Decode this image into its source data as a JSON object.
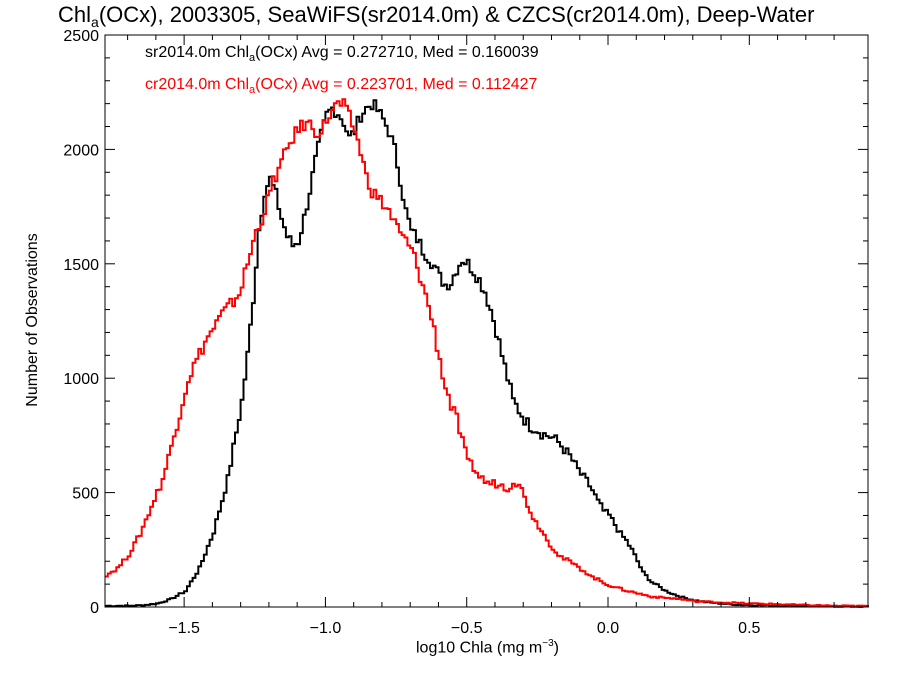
{
  "chart_data": {
    "type": "line",
    "title": {
      "pre": "Chl",
      "sub": "a",
      "post": "(OCx), 2003305, SeaWiFS(sr2014.0m) & CZCS(cr2014.0m), Deep-Water"
    },
    "xlabel": {
      "pre": "log10 Chla (mg m",
      "sup": "−3",
      "post": ")"
    },
    "ylabel": "Number of Observations",
    "xlim": [
      -1.78,
      0.92
    ],
    "ylim": [
      0,
      2500
    ],
    "xticks": [
      -1.5,
      -1.0,
      -0.5,
      0.0,
      0.5
    ],
    "xtick_labels": [
      "−1.5",
      "−1.0",
      "−0.5",
      "0.0",
      "0.5"
    ],
    "yticks": [
      0,
      500,
      1000,
      1500,
      2000,
      2500
    ],
    "ytick_labels": [
      "0",
      "500",
      "1000",
      "1500",
      "2000",
      "2500"
    ],
    "grid": false,
    "legend_placement": "top-left",
    "legend": [
      {
        "pre": "sr2014.0m Chl",
        "sub": "a",
        "post": "(OCx) Avg = 0.272710, Med = 0.160039",
        "color": "#000000"
      },
      {
        "pre": "cr2014.0m Chl",
        "sub": "a",
        "post": "(OCx) Avg = 0.223701, Med = 0.112427",
        "color": "#ff0000"
      }
    ],
    "series": [
      {
        "color": "#000000",
        "x": [
          -1.78,
          -1.7,
          -1.65,
          -1.6,
          -1.55,
          -1.5,
          -1.45,
          -1.4,
          -1.35,
          -1.3,
          -1.28,
          -1.26,
          -1.24,
          -1.22,
          -1.2,
          -1.18,
          -1.16,
          -1.14,
          -1.12,
          -1.1,
          -1.08,
          -1.06,
          -1.04,
          -1.02,
          -1.0,
          -0.98,
          -0.96,
          -0.94,
          -0.92,
          -0.9,
          -0.88,
          -0.86,
          -0.84,
          -0.82,
          -0.8,
          -0.78,
          -0.76,
          -0.74,
          -0.72,
          -0.7,
          -0.68,
          -0.66,
          -0.64,
          -0.62,
          -0.6,
          -0.58,
          -0.56,
          -0.54,
          -0.52,
          -0.5,
          -0.48,
          -0.46,
          -0.44,
          -0.42,
          -0.4,
          -0.38,
          -0.36,
          -0.34,
          -0.32,
          -0.3,
          -0.28,
          -0.26,
          -0.24,
          -0.22,
          -0.2,
          -0.18,
          -0.16,
          -0.14,
          -0.12,
          -0.1,
          -0.08,
          -0.06,
          -0.04,
          -0.02,
          0.0,
          0.02,
          0.04,
          0.06,
          0.08,
          0.1,
          0.12,
          0.15,
          0.2,
          0.25,
          0.3,
          0.35,
          0.4,
          0.45,
          0.5,
          0.6,
          0.7,
          0.8,
          0.92
        ],
        "y": [
          5,
          5,
          8,
          15,
          35,
          70,
          170,
          330,
          560,
          900,
          1100,
          1350,
          1650,
          1820,
          1870,
          1800,
          1700,
          1620,
          1580,
          1600,
          1700,
          1820,
          1950,
          2060,
          2150,
          2180,
          2160,
          2120,
          2050,
          2080,
          2150,
          2180,
          2200,
          2170,
          2130,
          2080,
          2000,
          1870,
          1730,
          1640,
          1610,
          1560,
          1530,
          1490,
          1440,
          1410,
          1420,
          1480,
          1520,
          1500,
          1470,
          1430,
          1380,
          1300,
          1210,
          1100,
          1000,
          900,
          860,
          820,
          790,
          780,
          760,
          750,
          740,
          720,
          690,
          660,
          620,
          580,
          550,
          510,
          460,
          420,
          400,
          360,
          320,
          290,
          250,
          200,
          150,
          110,
          70,
          45,
          30,
          20,
          15,
          10,
          8,
          6,
          5,
          3,
          2
        ]
      },
      {
        "color": "#ff0000",
        "x": [
          -1.78,
          -1.74,
          -1.7,
          -1.66,
          -1.62,
          -1.58,
          -1.55,
          -1.52,
          -1.49,
          -1.46,
          -1.43,
          -1.4,
          -1.37,
          -1.34,
          -1.31,
          -1.28,
          -1.25,
          -1.22,
          -1.19,
          -1.16,
          -1.13,
          -1.1,
          -1.08,
          -1.06,
          -1.04,
          -1.02,
          -1.0,
          -0.98,
          -0.96,
          -0.94,
          -0.92,
          -0.9,
          -0.88,
          -0.86,
          -0.84,
          -0.82,
          -0.8,
          -0.78,
          -0.76,
          -0.74,
          -0.72,
          -0.7,
          -0.68,
          -0.66,
          -0.64,
          -0.62,
          -0.6,
          -0.58,
          -0.56,
          -0.54,
          -0.52,
          -0.5,
          -0.48,
          -0.46,
          -0.44,
          -0.42,
          -0.4,
          -0.38,
          -0.36,
          -0.34,
          -0.32,
          -0.3,
          -0.28,
          -0.26,
          -0.24,
          -0.22,
          -0.2,
          -0.18,
          -0.16,
          -0.14,
          -0.12,
          -0.1,
          -0.08,
          -0.06,
          -0.04,
          -0.02,
          0.0,
          0.05,
          0.1,
          0.15,
          0.2,
          0.25,
          0.3,
          0.4,
          0.5,
          0.6,
          0.7,
          0.8,
          0.92
        ],
        "y": [
          140,
          170,
          230,
          320,
          440,
          560,
          700,
          850,
          1000,
          1080,
          1160,
          1220,
          1280,
          1320,
          1370,
          1500,
          1640,
          1730,
          1860,
          1940,
          2030,
          2090,
          2110,
          2110,
          2080,
          2080,
          2130,
          2170,
          2200,
          2190,
          2140,
          2080,
          1990,
          1880,
          1820,
          1790,
          1760,
          1730,
          1680,
          1630,
          1600,
          1560,
          1490,
          1400,
          1320,
          1210,
          1080,
          960,
          880,
          820,
          720,
          630,
          610,
          570,
          550,
          540,
          540,
          530,
          520,
          550,
          540,
          480,
          420,
          370,
          340,
          290,
          260,
          230,
          210,
          200,
          180,
          165,
          150,
          130,
          120,
          105,
          95,
          75,
          60,
          45,
          40,
          35,
          25,
          20,
          15,
          12,
          8,
          5,
          4
        ]
      }
    ]
  }
}
